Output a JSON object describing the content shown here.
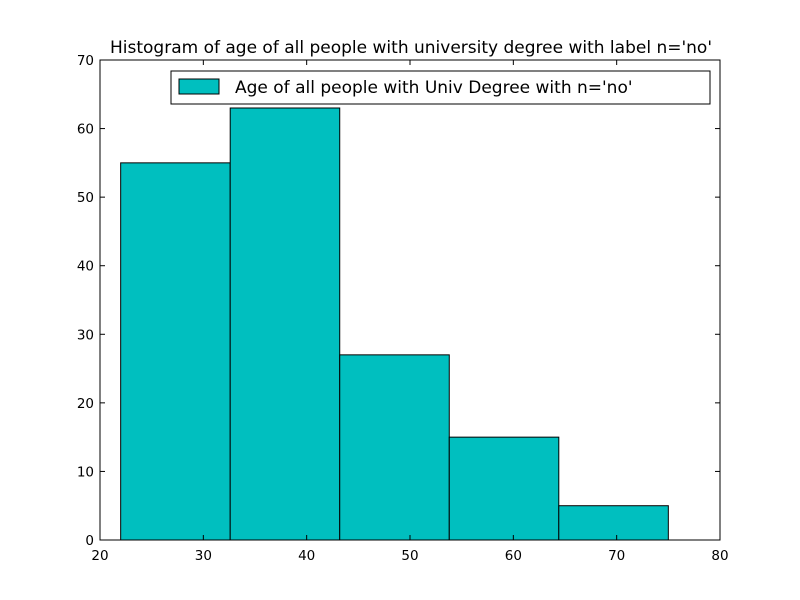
{
  "chart_data": {
    "type": "bar",
    "title": "Histogram of age of all people with university degree with label n='no'",
    "xlabel": "",
    "ylabel": "",
    "xlim": [
      20,
      80
    ],
    "ylim": [
      0,
      70
    ],
    "xticks": [
      20,
      30,
      40,
      50,
      60,
      70,
      80
    ],
    "yticks": [
      0,
      10,
      20,
      30,
      40,
      50,
      60,
      70
    ],
    "grid": false,
    "legend_position": "top-right",
    "bins": [
      {
        "x0": 22.0,
        "x1": 32.6,
        "count": 55
      },
      {
        "x0": 32.6,
        "x1": 43.2,
        "count": 63
      },
      {
        "x0": 43.2,
        "x1": 53.8,
        "count": 27
      },
      {
        "x0": 53.8,
        "x1": 64.4,
        "count": 15
      },
      {
        "x0": 64.4,
        "x1": 75.0,
        "count": 5
      }
    ],
    "series": [
      {
        "name": "Age of all people with Univ Degree with n='no'",
        "color": "#00bfbf"
      }
    ]
  }
}
